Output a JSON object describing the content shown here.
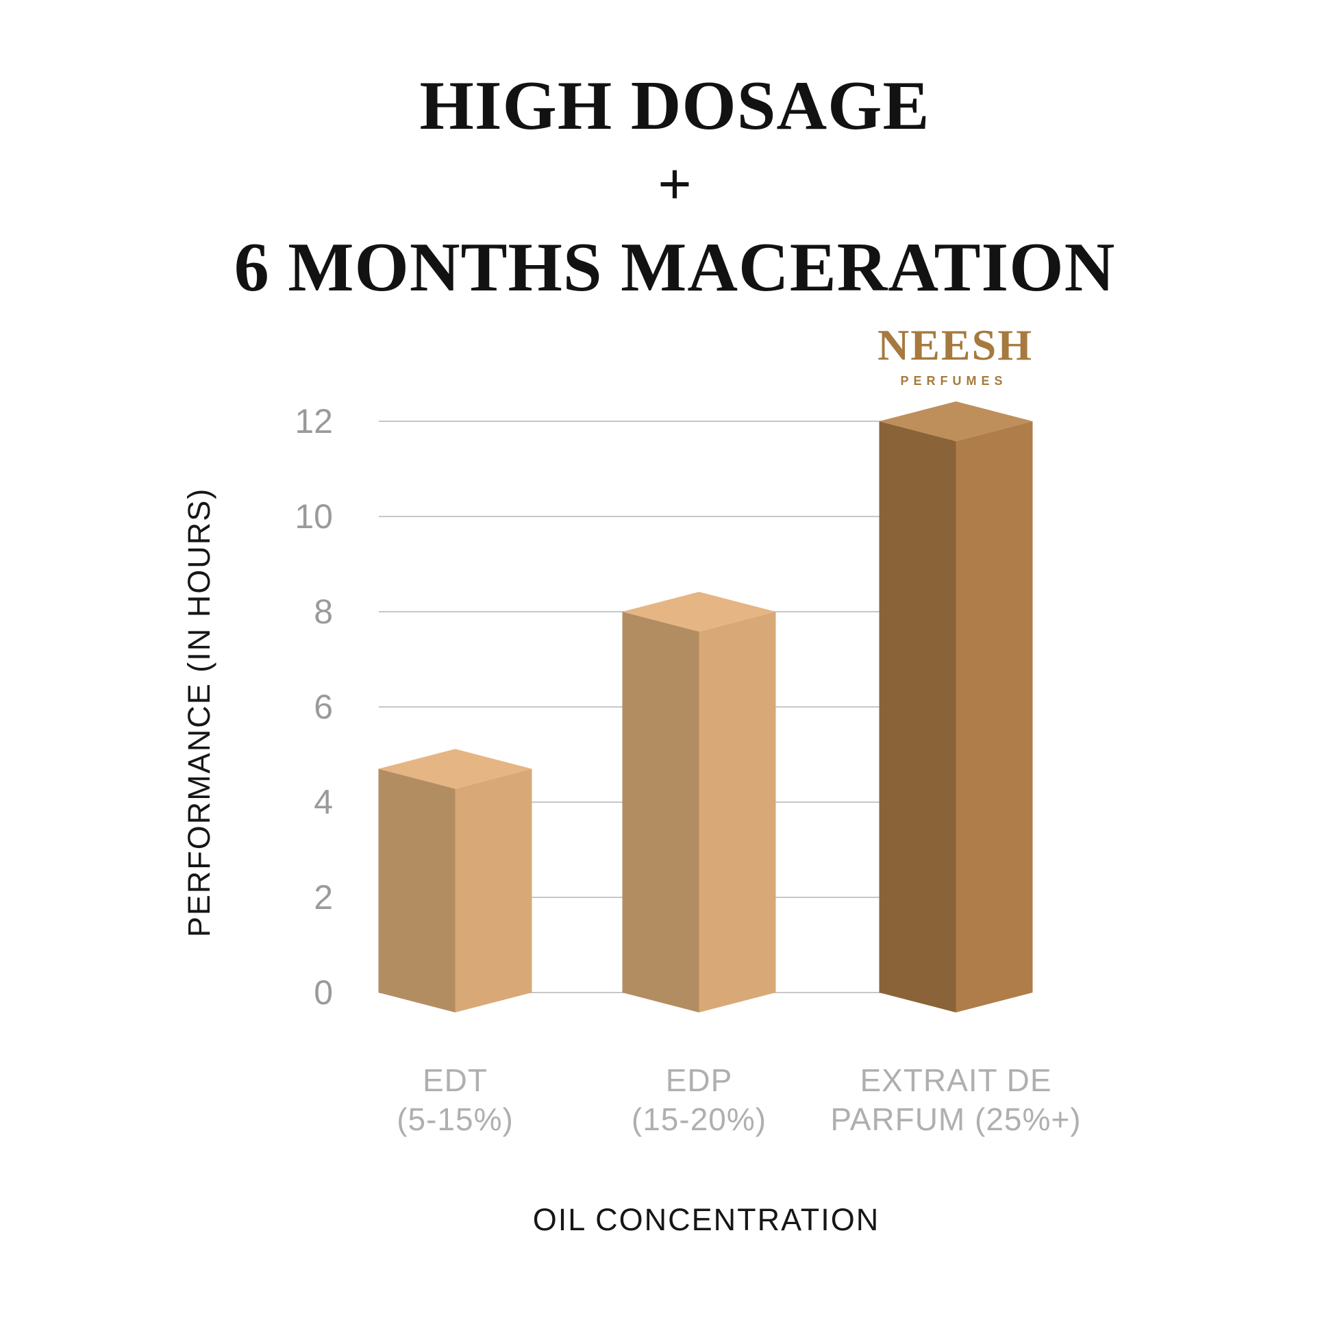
{
  "title": {
    "line1": "HIGH DOSAGE",
    "plus": "+",
    "line2": "6 MONTHS MACERATION"
  },
  "logo": {
    "name": "NEESH",
    "sub": "PERFUMES",
    "color": "#A6793E"
  },
  "chart_data": {
    "type": "bar",
    "style": "3d-isometric-columns",
    "title": "HIGH DOSAGE + 6 MONTHS MACERATION",
    "categories": [
      "EDT (5-15%)",
      "EDP (15-20%)",
      "EXTRAIT DE PARFUM (25%+)"
    ],
    "category_label_lines": [
      [
        "EDT",
        "(5-15%)"
      ],
      [
        "EDP",
        "(15-20%)"
      ],
      [
        "EXTRAIT DE",
        "PARFUM (25%+)"
      ]
    ],
    "values": [
      4.7,
      8,
      12
    ],
    "xlabel": "OIL CONCENTRATION",
    "ylabel": "PERFORMANCE (IN HOURS)",
    "yticks": [
      0,
      2,
      4,
      6,
      8,
      10,
      12
    ],
    "ylim": [
      0,
      12
    ],
    "grid": true,
    "legend": "none",
    "grid_color": "#C7C7C7",
    "tick_color": "#9A9A9A",
    "category_label_color": "#AFAFAF",
    "bar_colors": [
      {
        "top": "#E6B584",
        "left": "#B38D62",
        "right": "#D8A977"
      },
      {
        "top": "#E6B584",
        "left": "#B38D62",
        "right": "#D8A977"
      },
      {
        "top": "#BE8F5B",
        "left": "#8B6338",
        "right": "#AE7D4A"
      }
    ]
  }
}
